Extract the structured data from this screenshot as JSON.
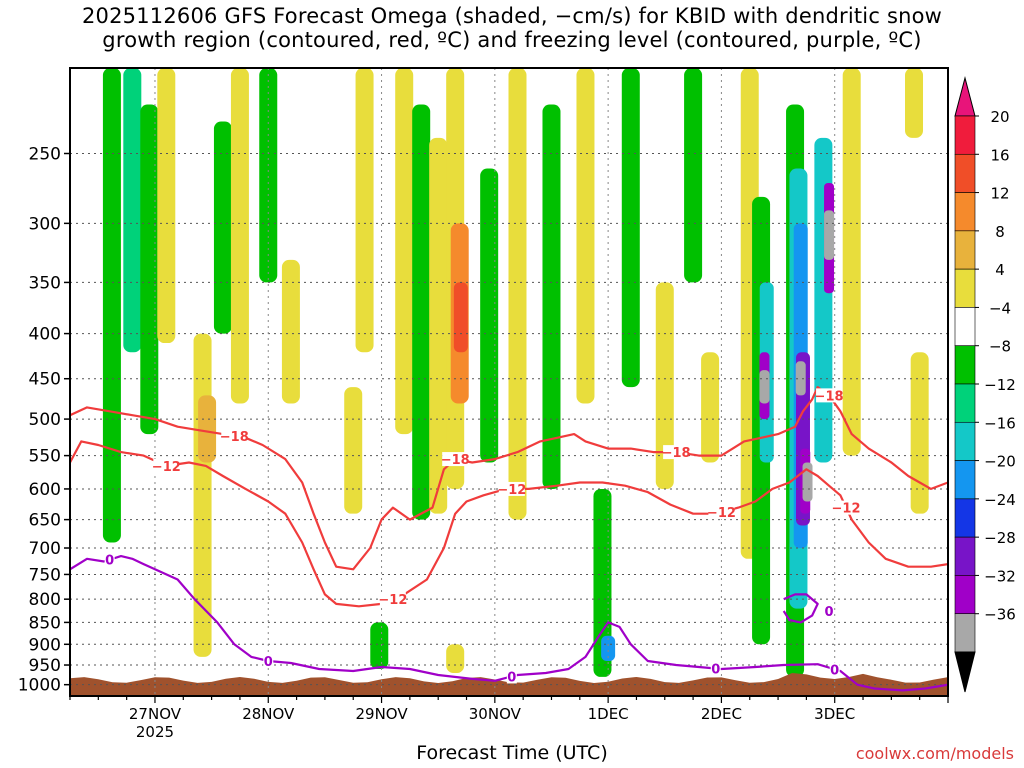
{
  "title_line1": "2025112606 GFS Forecast Omega (shaded, −cm/s) for KBID with dendritic snow",
  "title_line2": "growth region (contoured, red, ºC) and freezing level (contoured, purple, ºC)",
  "credit": "coolwx.com/models",
  "chart_data": {
    "type": "heatmap",
    "title": "2025112606 GFS Forecast Omega (shaded, −cm/s) for KBID with dendritic snow growth region (contoured, red, ºC) and freezing level (contoured, purple, ºC)",
    "xlabel": "Forecast Time (UTC)",
    "ylabel": "",
    "x_range_days": [
      26.25,
      34.0
    ],
    "x_ticks": [
      {
        "label": "27NOV",
        "sublabel": "2025",
        "day": 27
      },
      {
        "label": "28NOV",
        "sublabel": "",
        "day": 28
      },
      {
        "label": "29NOV",
        "sublabel": "",
        "day": 29
      },
      {
        "label": "30NOV",
        "sublabel": "",
        "day": 30
      },
      {
        "label": "1DEC",
        "sublabel": "",
        "day": 31
      },
      {
        "label": "2DEC",
        "sublabel": "",
        "day": 32
      },
      {
        "label": "3DEC",
        "sublabel": "",
        "day": 33
      }
    ],
    "y_scale": "log",
    "y_range": [
      1030,
      200
    ],
    "y_ticks": [
      250,
      300,
      350,
      400,
      450,
      500,
      550,
      600,
      650,
      700,
      750,
      800,
      850,
      900,
      950,
      1000
    ],
    "grid": true,
    "colorbar": {
      "labels": [
        "20",
        "16",
        "12",
        "8",
        "4",
        "−4",
        "−8",
        "−12",
        "−16",
        "−20",
        "−24",
        "−28",
        "−32",
        "−36"
      ],
      "bins": [
        {
          "color": "#f01c3c",
          "range": [
            20,
            24
          ]
        },
        {
          "color": "#f04e28",
          "range": [
            16,
            20
          ]
        },
        {
          "color": "#f58a2c",
          "range": [
            12,
            16
          ]
        },
        {
          "color": "#e8b23c",
          "range": [
            8,
            12
          ]
        },
        {
          "color": "#e8dd3c",
          "range": [
            4,
            8
          ]
        },
        {
          "color": "#ffffff",
          "range": [
            -4,
            4
          ]
        },
        {
          "color": "#00c000",
          "range": [
            -8,
            -4
          ]
        },
        {
          "color": "#00d27a",
          "range": [
            -12,
            -8
          ]
        },
        {
          "color": "#14c8c8",
          "range": [
            -16,
            -12
          ]
        },
        {
          "color": "#1496f0",
          "range": [
            -20,
            -16
          ]
        },
        {
          "color": "#1436e6",
          "range": [
            -24,
            -20
          ]
        },
        {
          "color": "#7814c8",
          "range": [
            -28,
            -24
          ]
        },
        {
          "color": "#a000c8",
          "range": [
            -32,
            -28
          ]
        },
        {
          "color": "#a8a8a8",
          "range": [
            -36,
            -32
          ]
        }
      ],
      "top_arrow_color": "#e8147a",
      "bottom_arrow_color": "#000000"
    },
    "omega_features": [
      {
        "day": 26.62,
        "p_top": 200,
        "p_bot": 690,
        "value": -6
      },
      {
        "day": 26.8,
        "p_top": 200,
        "p_bot": 420,
        "value": -10
      },
      {
        "day": 26.95,
        "p_top": 220,
        "p_bot": 520,
        "value": -6
      },
      {
        "day": 27.1,
        "p_top": 200,
        "p_bot": 410,
        "value": 5
      },
      {
        "day": 27.42,
        "p_top": 400,
        "p_bot": 930,
        "value": 6
      },
      {
        "day": 27.46,
        "p_top": 470,
        "p_bot": 560,
        "value": 11
      },
      {
        "day": 27.6,
        "p_top": 230,
        "p_bot": 400,
        "value": -6
      },
      {
        "day": 27.75,
        "p_top": 200,
        "p_bot": 480,
        "value": 5
      },
      {
        "day": 28.0,
        "p_top": 200,
        "p_bot": 350,
        "value": -6
      },
      {
        "day": 28.2,
        "p_top": 330,
        "p_bot": 480,
        "value": 5
      },
      {
        "day": 28.75,
        "p_top": 460,
        "p_bot": 640,
        "value": 5
      },
      {
        "day": 28.85,
        "p_top": 200,
        "p_bot": 420,
        "value": 5
      },
      {
        "day": 28.98,
        "p_top": 850,
        "p_bot": 960,
        "value": -6
      },
      {
        "day": 29.2,
        "p_top": 200,
        "p_bot": 520,
        "value": 5
      },
      {
        "day": 29.35,
        "p_top": 220,
        "p_bot": 650,
        "value": -6
      },
      {
        "day": 29.5,
        "p_top": 240,
        "p_bot": 640,
        "value": 5
      },
      {
        "day": 29.65,
        "p_top": 200,
        "p_bot": 600,
        "value": 6
      },
      {
        "day": 29.69,
        "p_top": 300,
        "p_bot": 480,
        "value": 12
      },
      {
        "day": 29.7,
        "p_top": 350,
        "p_bot": 420,
        "value": 18
      },
      {
        "day": 29.65,
        "p_top": 900,
        "p_bot": 970,
        "value": 6
      },
      {
        "day": 29.95,
        "p_top": 260,
        "p_bot": 560,
        "value": -6
      },
      {
        "day": 30.2,
        "p_top": 200,
        "p_bot": 650,
        "value": 5
      },
      {
        "day": 30.5,
        "p_top": 220,
        "p_bot": 600,
        "value": -6
      },
      {
        "day": 30.8,
        "p_top": 200,
        "p_bot": 480,
        "value": 5
      },
      {
        "day": 30.95,
        "p_top": 600,
        "p_bot": 980,
        "value": -6
      },
      {
        "day": 31.0,
        "p_top": 880,
        "p_bot": 940,
        "value": -18
      },
      {
        "day": 31.2,
        "p_top": 200,
        "p_bot": 460,
        "value": -6
      },
      {
        "day": 31.5,
        "p_top": 350,
        "p_bot": 600,
        "value": 5
      },
      {
        "day": 31.75,
        "p_top": 200,
        "p_bot": 350,
        "value": -6
      },
      {
        "day": 31.9,
        "p_top": 420,
        "p_bot": 560,
        "value": 5
      },
      {
        "day": 32.25,
        "p_top": 200,
        "p_bot": 720,
        "value": 5
      },
      {
        "day": 32.35,
        "p_top": 280,
        "p_bot": 900,
        "value": -8
      },
      {
        "day": 32.4,
        "p_top": 350,
        "p_bot": 560,
        "value": -16
      },
      {
        "day": 32.38,
        "p_top": 420,
        "p_bot": 500,
        "value": -30
      },
      {
        "day": 32.38,
        "p_top": 440,
        "p_bot": 480,
        "value": -36
      },
      {
        "day": 32.65,
        "p_top": 220,
        "p_bot": 980,
        "value": -8
      },
      {
        "day": 32.68,
        "p_top": 260,
        "p_bot": 820,
        "value": -14
      },
      {
        "day": 32.7,
        "p_top": 300,
        "p_bot": 700,
        "value": -20
      },
      {
        "day": 32.72,
        "p_top": 420,
        "p_bot": 660,
        "value": -26
      },
      {
        "day": 32.74,
        "p_top": 540,
        "p_bot": 640,
        "value": -32
      },
      {
        "day": 32.76,
        "p_top": 560,
        "p_bot": 620,
        "value": -36
      },
      {
        "day": 32.7,
        "p_top": 430,
        "p_bot": 470,
        "value": -36
      },
      {
        "day": 32.9,
        "p_top": 240,
        "p_bot": 560,
        "value": -14
      },
      {
        "day": 32.95,
        "p_top": 270,
        "p_bot": 360,
        "value": -30
      },
      {
        "day": 32.95,
        "p_top": 290,
        "p_bot": 330,
        "value": -36
      },
      {
        "day": 33.15,
        "p_top": 200,
        "p_bot": 550,
        "value": 5
      },
      {
        "day": 33.7,
        "p_top": 200,
        "p_bot": 240,
        "value": 5
      },
      {
        "day": 33.75,
        "p_top": 420,
        "p_bot": 640,
        "value": 5
      }
    ],
    "contours": [
      {
        "name": "-18",
        "color": "#f03c3c",
        "label_text": "−18",
        "labels_at": [
          27.7,
          29.65,
          31.6,
          32.95
        ],
        "points": [
          [
            26.25,
            495
          ],
          [
            26.4,
            485
          ],
          [
            26.6,
            490
          ],
          [
            26.8,
            495
          ],
          [
            27.0,
            500
          ],
          [
            27.2,
            510
          ],
          [
            27.4,
            515
          ],
          [
            27.6,
            520
          ],
          [
            27.8,
            525
          ],
          [
            27.95,
            535
          ],
          [
            28.15,
            555
          ],
          [
            28.3,
            590
          ],
          [
            28.4,
            640
          ],
          [
            28.5,
            690
          ],
          [
            28.6,
            735
          ],
          [
            28.75,
            740
          ],
          [
            28.9,
            700
          ],
          [
            29.0,
            650
          ],
          [
            29.1,
            630
          ],
          [
            29.25,
            650
          ],
          [
            29.45,
            630
          ],
          [
            29.55,
            570
          ],
          [
            29.65,
            555
          ],
          [
            29.8,
            560
          ],
          [
            30.0,
            555
          ],
          [
            30.2,
            545
          ],
          [
            30.4,
            530
          ],
          [
            30.55,
            525
          ],
          [
            30.7,
            520
          ],
          [
            30.8,
            530
          ],
          [
            31.0,
            540
          ],
          [
            31.2,
            540
          ],
          [
            31.4,
            545
          ],
          [
            31.6,
            545
          ],
          [
            31.8,
            550
          ],
          [
            32.0,
            550
          ],
          [
            32.1,
            540
          ],
          [
            32.2,
            530
          ],
          [
            32.35,
            525
          ],
          [
            32.5,
            520
          ],
          [
            32.65,
            510
          ],
          [
            32.72,
            490
          ],
          [
            32.8,
            475
          ],
          [
            32.85,
            460
          ],
          [
            32.95,
            470
          ],
          [
            33.05,
            490
          ],
          [
            33.15,
            520
          ],
          [
            33.3,
            540
          ],
          [
            33.5,
            560
          ],
          [
            33.65,
            580
          ],
          [
            33.75,
            590
          ],
          [
            33.85,
            600
          ],
          [
            34.0,
            590
          ]
        ]
      },
      {
        "name": "-12",
        "color": "#f03c3c",
        "label_text": "−12",
        "labels_at": [
          27.1,
          29.1,
          30.15,
          32.0,
          33.1
        ],
        "points": [
          [
            26.25,
            560
          ],
          [
            26.35,
            530
          ],
          [
            26.5,
            535
          ],
          [
            26.7,
            545
          ],
          [
            26.9,
            550
          ],
          [
            27.1,
            565
          ],
          [
            27.3,
            560
          ],
          [
            27.45,
            565
          ],
          [
            27.6,
            580
          ],
          [
            27.8,
            600
          ],
          [
            28.0,
            620
          ],
          [
            28.15,
            640
          ],
          [
            28.3,
            690
          ],
          [
            28.4,
            740
          ],
          [
            28.5,
            790
          ],
          [
            28.6,
            810
          ],
          [
            28.8,
            815
          ],
          [
            29.0,
            810
          ],
          [
            29.2,
            790
          ],
          [
            29.4,
            760
          ],
          [
            29.55,
            700
          ],
          [
            29.65,
            640
          ],
          [
            29.75,
            620
          ],
          [
            29.9,
            610
          ],
          [
            30.1,
            600
          ],
          [
            30.3,
            600
          ],
          [
            30.55,
            595
          ],
          [
            30.75,
            590
          ],
          [
            30.95,
            590
          ],
          [
            31.15,
            595
          ],
          [
            31.35,
            605
          ],
          [
            31.55,
            625
          ],
          [
            31.75,
            640
          ],
          [
            31.95,
            640
          ],
          [
            32.15,
            630
          ],
          [
            32.3,
            620
          ],
          [
            32.45,
            600
          ],
          [
            32.6,
            590
          ],
          [
            32.75,
            570
          ],
          [
            32.85,
            580
          ],
          [
            32.95,
            595
          ],
          [
            33.05,
            610
          ],
          [
            33.15,
            650
          ],
          [
            33.3,
            690
          ],
          [
            33.45,
            720
          ],
          [
            33.65,
            735
          ],
          [
            33.85,
            735
          ],
          [
            34.0,
            730
          ]
        ]
      },
      {
        "name": "0",
        "color": "#a000c8",
        "label_text": "0",
        "labels_at": [
          26.6,
          28.0,
          30.15,
          31.95,
          33.0
        ],
        "points": [
          [
            26.25,
            740
          ],
          [
            26.4,
            720
          ],
          [
            26.55,
            725
          ],
          [
            26.7,
            715
          ],
          [
            26.8,
            720
          ],
          [
            26.9,
            730
          ],
          [
            27.0,
            740
          ],
          [
            27.2,
            760
          ],
          [
            27.35,
            800
          ],
          [
            27.55,
            850
          ],
          [
            27.7,
            900
          ],
          [
            27.85,
            930
          ],
          [
            28.0,
            940
          ],
          [
            28.2,
            945
          ],
          [
            28.45,
            960
          ],
          [
            28.75,
            965
          ],
          [
            29.0,
            955
          ],
          [
            29.25,
            960
          ],
          [
            29.5,
            975
          ],
          [
            29.8,
            985
          ],
          [
            30.0,
            990
          ],
          [
            30.2,
            975
          ],
          [
            30.45,
            970
          ],
          [
            30.65,
            960
          ],
          [
            30.8,
            930
          ],
          [
            30.92,
            880
          ],
          [
            31.0,
            850
          ],
          [
            31.1,
            860
          ],
          [
            31.2,
            900
          ],
          [
            31.35,
            940
          ],
          [
            31.6,
            950
          ],
          [
            31.8,
            955
          ],
          [
            32.0,
            960
          ],
          [
            32.3,
            955
          ],
          [
            32.55,
            950
          ],
          [
            32.85,
            948
          ],
          [
            33.05,
            965
          ],
          [
            33.2,
            1000
          ],
          [
            33.35,
            1010
          ],
          [
            33.6,
            1015
          ],
          [
            33.8,
            1010
          ],
          [
            34.0,
            1000
          ]
        ]
      },
      {
        "name": "0-upper",
        "color": "#a000c8",
        "label_text": "0",
        "labels_at": [
          32.95
        ],
        "points": [
          [
            32.55,
            800
          ],
          [
            32.65,
            790
          ],
          [
            32.75,
            790
          ],
          [
            32.85,
            810
          ],
          [
            32.8,
            835
          ],
          [
            32.7,
            850
          ],
          [
            32.6,
            845
          ],
          [
            32.55,
            825
          ]
        ]
      }
    ]
  }
}
